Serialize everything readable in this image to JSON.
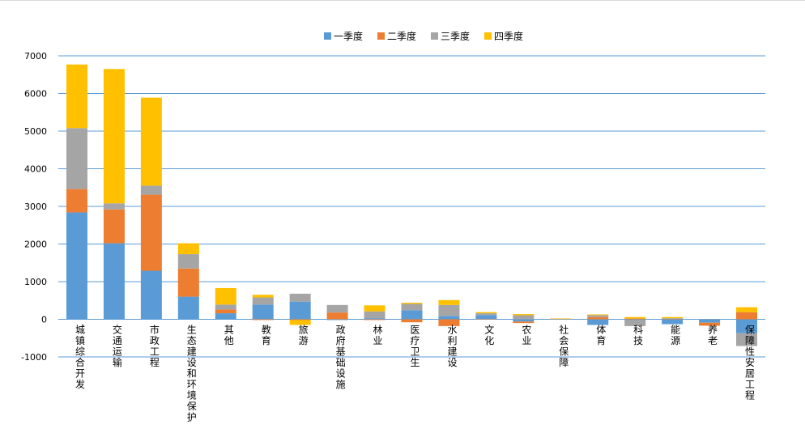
{
  "chart_data": {
    "type": "bar",
    "stacked": true,
    "title": "",
    "xlabel": "",
    "ylabel": "",
    "ylim": [
      -1000,
      7000
    ],
    "yticks": [
      -1000,
      0,
      1000,
      2000,
      3000,
      4000,
      5000,
      6000,
      7000
    ],
    "grid": true,
    "legend_position": "top",
    "categories": [
      "城镇综合开发",
      "交通运输",
      "市政工程",
      "生态建设和环境保护",
      "其他",
      "教育",
      "旅游",
      "政府基础设施",
      "林业",
      "医疗卫生",
      "水利建设",
      "文化",
      "农业",
      "社会保障",
      "体育",
      "科技",
      "能源",
      "养老",
      "保障性安居工程"
    ],
    "series": [
      {
        "name": "一季度",
        "color": "#5b9bd5",
        "values": [
          2840,
          2020,
          1290,
          600,
          160,
          390,
          470,
          -20,
          30,
          240,
          90,
          110,
          -60,
          5,
          -150,
          -20,
          -130,
          -90,
          -370
        ]
      },
      {
        "name": "二季度",
        "color": "#ed7d31",
        "values": [
          620,
          900,
          2020,
          750,
          100,
          -20,
          -20,
          180,
          -20,
          -80,
          -180,
          -10,
          -40,
          5,
          60,
          20,
          10,
          -80,
          190
        ]
      },
      {
        "name": "三季度",
        "color": "#a5a5a5",
        "values": [
          1620,
          160,
          240,
          380,
          130,
          190,
          210,
          200,
          180,
          170,
          290,
          50,
          110,
          5,
          50,
          -160,
          20,
          10,
          -340
        ]
      },
      {
        "name": "四季度",
        "color": "#ffc000",
        "values": [
          1690,
          3570,
          2340,
          290,
          440,
          70,
          -130,
          0,
          160,
          30,
          130,
          30,
          30,
          10,
          20,
          40,
          30,
          0,
          130
        ]
      }
    ]
  }
}
